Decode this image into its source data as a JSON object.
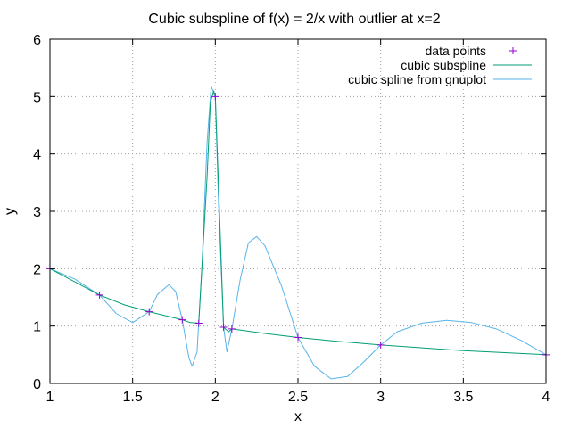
{
  "chart_data": {
    "type": "line",
    "title": "Cubic subspline of f(x) = 2/x with outlier at x=2",
    "xlabel": "x",
    "ylabel": "y",
    "xlim": [
      1,
      4
    ],
    "ylim": [
      0,
      6
    ],
    "xticks": [
      "1",
      "1.5",
      "2",
      "2.5",
      "3",
      "3.5",
      "4"
    ],
    "yticks": [
      "0",
      "1",
      "2",
      "3",
      "4",
      "5",
      "6"
    ],
    "grid": true,
    "legend_position": "top-right",
    "series": [
      {
        "name": "data points",
        "kind": "points",
        "color": "#9400d3",
        "x": [
          1.0,
          1.3,
          1.6,
          1.8,
          1.9,
          2.0,
          2.05,
          2.1,
          2.5,
          3.0,
          4.0
        ],
        "y": [
          2.0,
          1.54,
          1.25,
          1.11,
          1.05,
          5.0,
          0.98,
          0.95,
          0.8,
          0.67,
          0.5
        ]
      },
      {
        "name": "cubic subspline",
        "kind": "line",
        "color": "#009e73",
        "x": [
          1.0,
          1.15,
          1.3,
          1.45,
          1.6,
          1.7,
          1.8,
          1.85,
          1.9,
          1.95,
          1.97,
          1.99,
          2.0,
          2.02,
          2.05,
          2.08,
          2.1,
          2.3,
          2.5,
          2.75,
          3.0,
          3.5,
          4.0
        ],
        "y": [
          2.0,
          1.77,
          1.54,
          1.37,
          1.25,
          1.18,
          1.11,
          1.06,
          1.05,
          3.6,
          4.9,
          5.1,
          5.0,
          3.4,
          0.98,
          0.9,
          0.95,
          0.87,
          0.8,
          0.73,
          0.67,
          0.57,
          0.5
        ]
      },
      {
        "name": "cubic spline from gnuplot",
        "kind": "line",
        "color": "#56b4e9",
        "x": [
          1.0,
          1.15,
          1.3,
          1.4,
          1.5,
          1.6,
          1.65,
          1.72,
          1.76,
          1.8,
          1.84,
          1.86,
          1.89,
          1.92,
          1.95,
          1.975,
          2.0,
          2.02,
          2.05,
          2.07,
          2.1,
          2.15,
          2.2,
          2.25,
          2.3,
          2.4,
          2.5,
          2.6,
          2.7,
          2.8,
          2.9,
          3.0,
          3.1,
          3.25,
          3.4,
          3.55,
          3.7,
          3.85,
          4.0
        ],
        "y": [
          2.0,
          1.82,
          1.54,
          1.22,
          1.06,
          1.25,
          1.55,
          1.72,
          1.6,
          1.11,
          0.45,
          0.3,
          0.55,
          2.1,
          4.2,
          5.18,
          5.0,
          3.1,
          0.98,
          0.55,
          0.95,
          1.8,
          2.45,
          2.56,
          2.4,
          1.7,
          0.8,
          0.3,
          0.08,
          0.12,
          0.38,
          0.67,
          0.9,
          1.05,
          1.1,
          1.06,
          0.95,
          0.75,
          0.5
        ]
      }
    ]
  }
}
